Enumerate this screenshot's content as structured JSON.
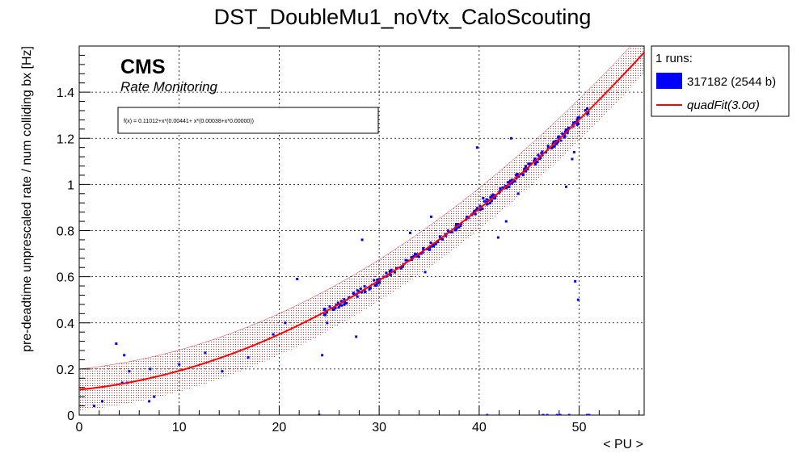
{
  "chart_data": {
    "type": "scatter",
    "title": "DST_DoubleMu1_noVtx_CaloScouting",
    "xlabel": "< PU >",
    "ylabel": "pre-deadtime unprescaled rate / num colliding bx [Hz]",
    "xlim": [
      0,
      56.5
    ],
    "ylim": [
      0,
      1.6
    ],
    "x_ticks": [
      0,
      10,
      20,
      30,
      40,
      50
    ],
    "y_ticks": [
      0,
      0.2,
      0.4,
      0.6,
      0.8,
      1,
      1.2,
      1.4
    ],
    "x_tick_labels": [
      "0",
      "10",
      "20",
      "30",
      "40",
      "50"
    ],
    "y_tick_labels": [
      "0",
      "0.2",
      "0.4",
      "0.6",
      "0.8",
      "1",
      "1.2",
      "1.4"
    ],
    "grid": true,
    "legend_position": "right",
    "colors": {
      "points": "#0000ff",
      "fit": "#ff0000",
      "band": "#cc3333"
    },
    "annotations": {
      "cms": "CMS",
      "subtitle": "Rate Monitoring",
      "formula": "f(x) = 0.11012+x*(0.00441+ x*(0.00038+x*0.00000))"
    },
    "legend": {
      "header": "1 runs:",
      "entries": [
        {
          "label": "317182 (2544 b)",
          "kind": "box"
        },
        {
          "label": "quadFit(3.0σ)",
          "kind": "line"
        }
      ]
    },
    "fit": {
      "name": "quadFit",
      "coefficients": [
        0.11012,
        0.00441,
        0.00038,
        0.0
      ],
      "sigma_band": 3.0,
      "band_halfwidth": 0.09,
      "x_range": [
        0,
        56.5
      ]
    },
    "series": [
      {
        "name": "317182 (2544 b)",
        "band_x_range": [
          24.5,
          51
        ],
        "outliers": [
          [
            1.5,
            0.04
          ],
          [
            2.3,
            0.06
          ],
          [
            3.7,
            0.31
          ],
          [
            4.3,
            0.14
          ],
          [
            4.5,
            0.26
          ],
          [
            4.8,
            0.14
          ],
          [
            5.0,
            0.19
          ],
          [
            7.0,
            0.06
          ],
          [
            7.1,
            0.2
          ],
          [
            7.5,
            0.08
          ],
          [
            10.0,
            0.22
          ],
          [
            12.6,
            0.27
          ],
          [
            14.3,
            0.19
          ],
          [
            16.9,
            0.25
          ],
          [
            19.4,
            0.35
          ],
          [
            20.6,
            0.4
          ],
          [
            21.8,
            0.59
          ],
          [
            24.0,
            0.0
          ],
          [
            24.3,
            0.26
          ],
          [
            24.8,
            0.4
          ],
          [
            27.7,
            0.34
          ],
          [
            28.3,
            0.76
          ],
          [
            33.1,
            0.79
          ],
          [
            34.6,
            0.62
          ],
          [
            35.2,
            0.86
          ],
          [
            39.8,
            1.16
          ],
          [
            40.4,
            0.94
          ],
          [
            40.8,
            0.0
          ],
          [
            41.5,
            0.94
          ],
          [
            41.9,
            0.77
          ],
          [
            42.7,
            0.84
          ],
          [
            43.2,
            1.2
          ],
          [
            43.9,
            0.96
          ],
          [
            46.4,
            0.0
          ],
          [
            46.8,
            0.0
          ],
          [
            47.8,
            0.0
          ],
          [
            48.1,
            0.0
          ],
          [
            48.7,
            0.99
          ],
          [
            49.0,
            0.0
          ],
          [
            49.3,
            1.11
          ],
          [
            49.5,
            1.14
          ],
          [
            49.6,
            0.58
          ],
          [
            49.9,
            0.5
          ],
          [
            50.8,
            0.0
          ],
          [
            51.0,
            0.0
          ]
        ]
      }
    ]
  }
}
